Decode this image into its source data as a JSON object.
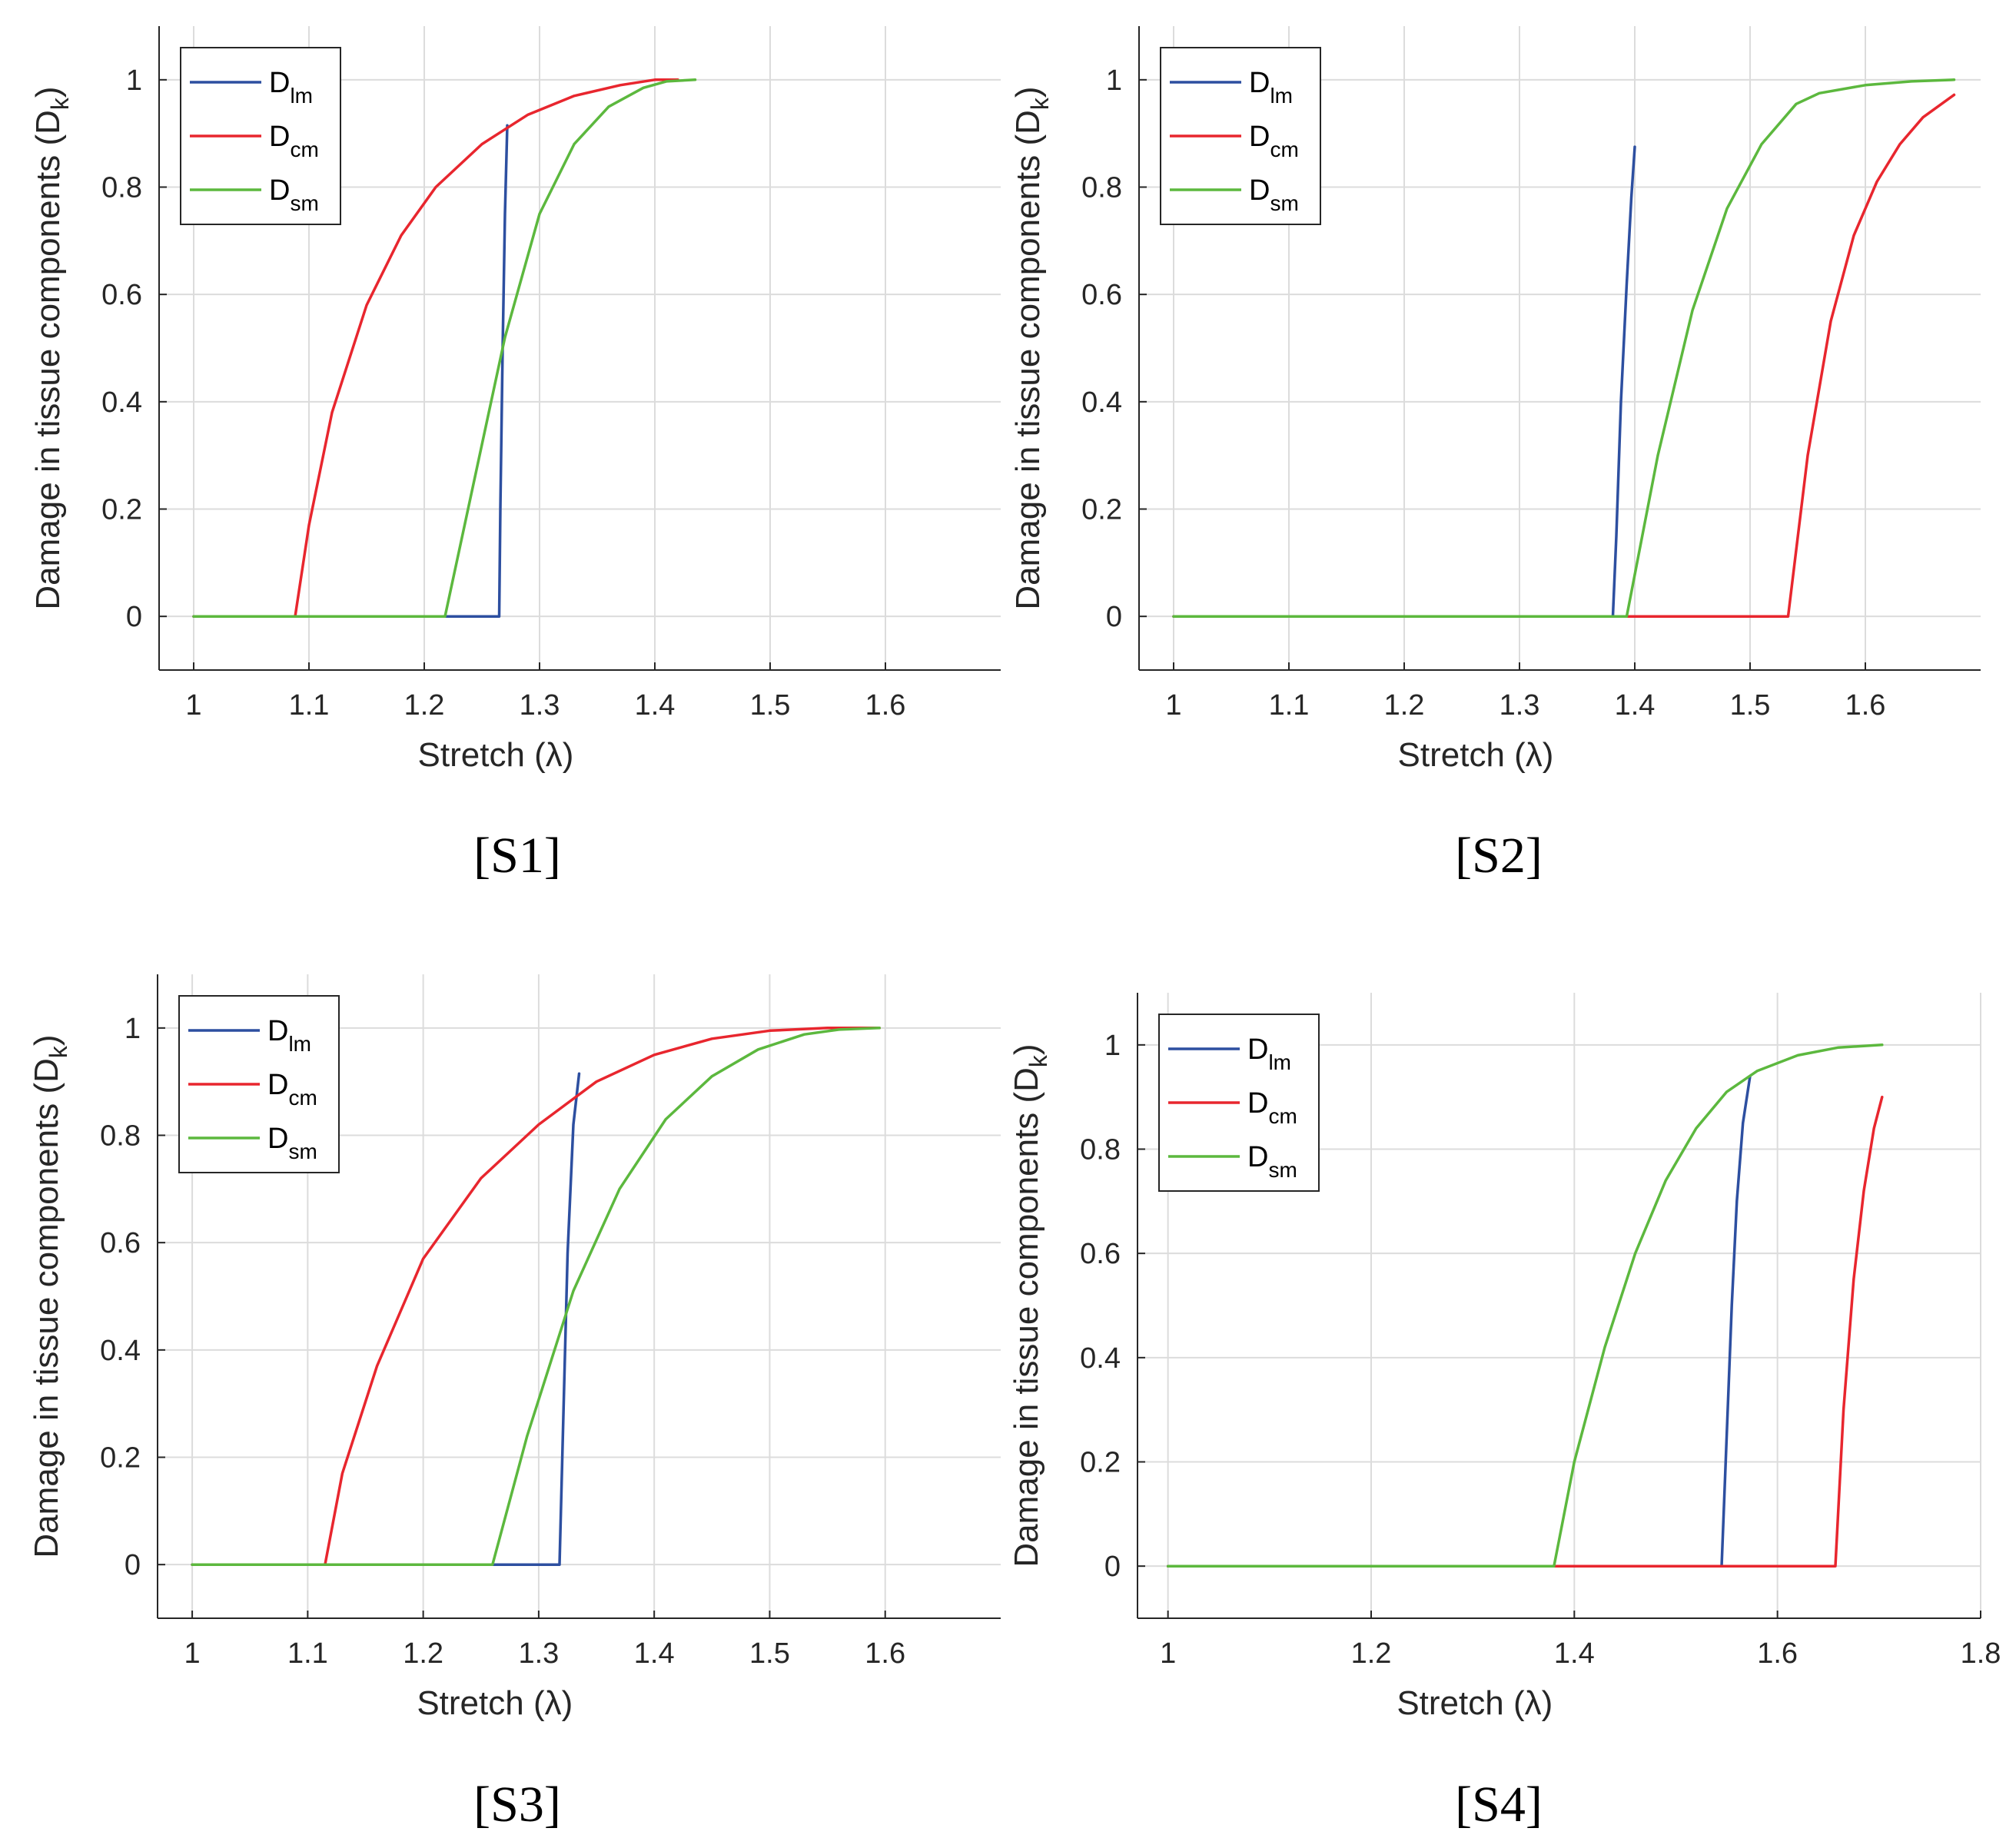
{
  "chart_data": [
    {
      "type": "line",
      "panel_label": "[S1]",
      "xlabel": "Stretch (λ)",
      "ylabel": "Damage in tissue components (D",
      "ylabel_sub": "k",
      "ylabel_close": ")",
      "xlim": [
        0.97,
        1.7
      ],
      "ylim": [
        -0.1,
        1.1
      ],
      "xticks": [
        1,
        1.1,
        1.2,
        1.3,
        1.4,
        1.5,
        1.6
      ],
      "xtick_labels": [
        "1",
        "1.1",
        "1.2",
        "1.3",
        "1.4",
        "1.5",
        "1.6"
      ],
      "yticks": [
        0,
        0.2,
        0.4,
        0.6,
        0.8,
        1
      ],
      "ytick_labels": [
        "0",
        "0.2",
        "0.4",
        "0.6",
        "0.8",
        "1"
      ],
      "grid": true,
      "legend_position": "top-left",
      "series": [
        {
          "name": "D",
          "sub": "lm",
          "color": "#2d4fa0",
          "x": [
            1.0,
            1.265,
            1.266,
            1.268,
            1.27,
            1.272
          ],
          "y": [
            0,
            0,
            0.2,
            0.5,
            0.75,
            0.915
          ]
        },
        {
          "name": "D",
          "sub": "cm",
          "color": "#e8262e",
          "x": [
            1.0,
            1.088,
            1.1,
            1.12,
            1.15,
            1.18,
            1.21,
            1.25,
            1.29,
            1.33,
            1.37,
            1.4,
            1.42
          ],
          "y": [
            0,
            0,
            0.17,
            0.38,
            0.58,
            0.71,
            0.8,
            0.88,
            0.935,
            0.97,
            0.99,
            1.0,
            1.0
          ]
        },
        {
          "name": "D",
          "sub": "sm",
          "color": "#5cb83e",
          "x": [
            1.0,
            1.218,
            1.24,
            1.27,
            1.3,
            1.33,
            1.36,
            1.39,
            1.41,
            1.435
          ],
          "y": [
            0,
            0,
            0.22,
            0.52,
            0.75,
            0.88,
            0.95,
            0.985,
            0.997,
            1.0
          ]
        }
      ]
    },
    {
      "type": "line",
      "panel_label": "[S2]",
      "xlabel": "Stretch (λ)",
      "ylabel": "Damage in tissue components (D",
      "ylabel_sub": "k",
      "ylabel_close": ")",
      "xlim": [
        0.97,
        1.7
      ],
      "ylim": [
        -0.1,
        1.1
      ],
      "xticks": [
        1,
        1.1,
        1.2,
        1.3,
        1.4,
        1.5,
        1.6
      ],
      "xtick_labels": [
        "1",
        "1.1",
        "1.2",
        "1.3",
        "1.4",
        "1.5",
        "1.6"
      ],
      "yticks": [
        0,
        0.2,
        0.4,
        0.6,
        0.8,
        1
      ],
      "ytick_labels": [
        "0",
        "0.2",
        "0.4",
        "0.6",
        "0.8",
        "1"
      ],
      "grid": true,
      "legend_position": "top-left",
      "series": [
        {
          "name": "D",
          "sub": "lm",
          "color": "#2d4fa0",
          "x": [
            1.0,
            1.381,
            1.384,
            1.388,
            1.393,
            1.397,
            1.4
          ],
          "y": [
            0,
            0,
            0.15,
            0.4,
            0.62,
            0.78,
            0.875
          ]
        },
        {
          "name": "D",
          "sub": "cm",
          "color": "#e8262e",
          "x": [
            1.0,
            1.533,
            1.55,
            1.57,
            1.59,
            1.61,
            1.63,
            1.65,
            1.677
          ],
          "y": [
            0,
            0,
            0.3,
            0.55,
            0.71,
            0.81,
            0.88,
            0.93,
            0.972
          ]
        },
        {
          "name": "D",
          "sub": "sm",
          "color": "#5cb83e",
          "x": [
            1.0,
            1.393,
            1.42,
            1.45,
            1.48,
            1.51,
            1.54,
            1.56,
            1.6,
            1.64,
            1.677
          ],
          "y": [
            0,
            0,
            0.3,
            0.57,
            0.76,
            0.88,
            0.955,
            0.975,
            0.99,
            0.997,
            1.0
          ]
        }
      ]
    },
    {
      "type": "line",
      "panel_label": "[S3]",
      "xlabel": "Stretch (λ)",
      "ylabel": "Damage in tissue components (D",
      "ylabel_sub": "k",
      "ylabel_close": ")",
      "xlim": [
        0.97,
        1.7
      ],
      "ylim": [
        -0.1,
        1.1
      ],
      "xticks": [
        1,
        1.1,
        1.2,
        1.3,
        1.4,
        1.5,
        1.6
      ],
      "xtick_labels": [
        "1",
        "1.1",
        "1.2",
        "1.3",
        "1.4",
        "1.5",
        "1.6"
      ],
      "yticks": [
        0,
        0.2,
        0.4,
        0.6,
        0.8,
        1
      ],
      "ytick_labels": [
        "0",
        "0.2",
        "0.4",
        "0.6",
        "0.8",
        "1"
      ],
      "grid": true,
      "legend_position": "top-left",
      "series": [
        {
          "name": "D",
          "sub": "lm",
          "color": "#2d4fa0",
          "x": [
            1.0,
            1.318,
            1.321,
            1.325,
            1.33,
            1.335
          ],
          "y": [
            0,
            0,
            0.25,
            0.58,
            0.82,
            0.915
          ]
        },
        {
          "name": "D",
          "sub": "cm",
          "color": "#e8262e",
          "x": [
            1.0,
            1.115,
            1.13,
            1.16,
            1.2,
            1.25,
            1.3,
            1.35,
            1.4,
            1.45,
            1.5,
            1.55,
            1.595
          ],
          "y": [
            0,
            0,
            0.17,
            0.37,
            0.57,
            0.72,
            0.82,
            0.9,
            0.95,
            0.98,
            0.995,
            1.0,
            1.0
          ]
        },
        {
          "name": "D",
          "sub": "sm",
          "color": "#5cb83e",
          "x": [
            1.0,
            1.26,
            1.29,
            1.33,
            1.37,
            1.41,
            1.45,
            1.49,
            1.53,
            1.56,
            1.595
          ],
          "y": [
            0,
            0,
            0.24,
            0.51,
            0.7,
            0.83,
            0.91,
            0.96,
            0.988,
            0.997,
            1.0
          ]
        }
      ]
    },
    {
      "type": "line",
      "panel_label": "[S4]",
      "xlabel": "Stretch (λ)",
      "ylabel": "Damage in tissue components (D",
      "ylabel_sub": "k",
      "ylabel_close": ")",
      "xlim": [
        0.97,
        1.8
      ],
      "ylim": [
        -0.1,
        1.1
      ],
      "xticks": [
        1,
        1.2,
        1.4,
        1.6,
        1.8
      ],
      "xtick_labels": [
        "1",
        "1.2",
        "1.4",
        "1.6",
        "1.8"
      ],
      "yticks": [
        0,
        0.2,
        0.4,
        0.6,
        0.8,
        1
      ],
      "ytick_labels": [
        "0",
        "0.2",
        "0.4",
        "0.6",
        "0.8",
        "1"
      ],
      "grid": true,
      "legend_position": "top-left",
      "series": [
        {
          "name": "D",
          "sub": "lm",
          "color": "#2d4fa0",
          "x": [
            1.0,
            1.545,
            1.55,
            1.555,
            1.56,
            1.566,
            1.573
          ],
          "y": [
            0,
            0,
            0.25,
            0.5,
            0.7,
            0.85,
            0.94
          ]
        },
        {
          "name": "D",
          "sub": "cm",
          "color": "#e8262e",
          "x": [
            1.0,
            1.657,
            1.665,
            1.675,
            1.685,
            1.695,
            1.703
          ],
          "y": [
            0,
            0,
            0.3,
            0.55,
            0.72,
            0.84,
            0.9
          ]
        },
        {
          "name": "D",
          "sub": "sm",
          "color": "#5cb83e",
          "x": [
            1.0,
            1.38,
            1.4,
            1.43,
            1.46,
            1.49,
            1.52,
            1.55,
            1.58,
            1.62,
            1.66,
            1.703
          ],
          "y": [
            0,
            0,
            0.2,
            0.42,
            0.6,
            0.74,
            0.84,
            0.91,
            0.95,
            0.98,
            0.995,
            1.0
          ]
        }
      ]
    }
  ]
}
